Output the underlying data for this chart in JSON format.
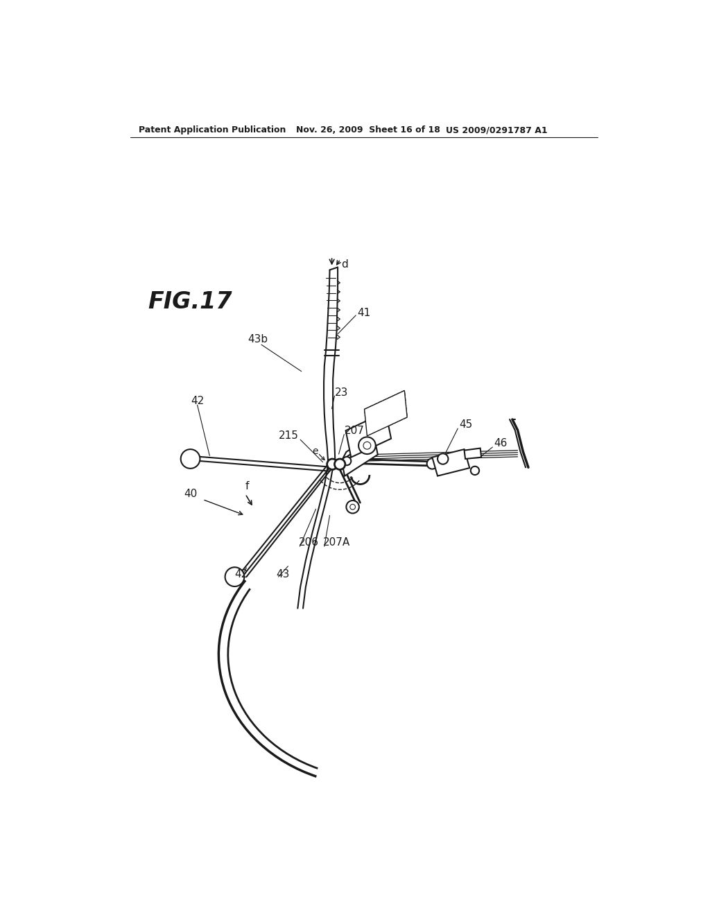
{
  "bg_color": "#ffffff",
  "line_color": "#1a1a1a",
  "fig_label": "FIG.17",
  "header_left": "Patent Application Publication",
  "header_mid": "Nov. 26, 2009  Sheet 16 of 18",
  "header_right": "US 2009/0291787 A1"
}
